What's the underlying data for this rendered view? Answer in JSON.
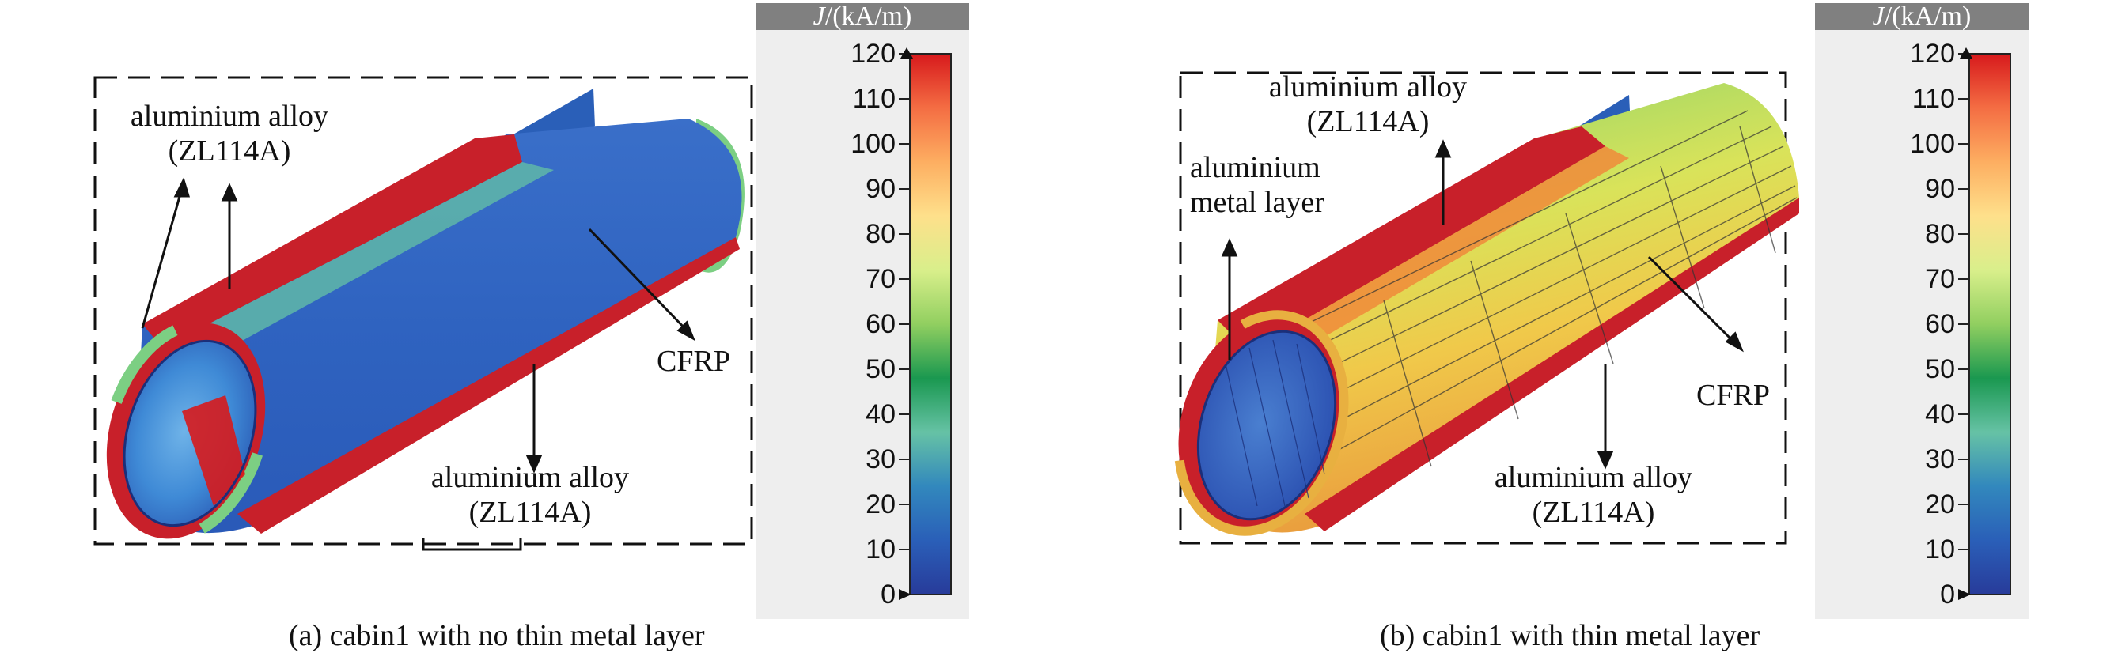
{
  "panel_a": {
    "labels": {
      "alloy_top": [
        "aluminium alloy",
        "(ZL114A)"
      ],
      "cfrp": "CFRP",
      "alloy_bottom": [
        "aluminium alloy",
        "(ZL114A)"
      ]
    },
    "caption": "(a) cabin1 with no thin metal layer"
  },
  "panel_b": {
    "labels": {
      "alloy_top": [
        "aluminium alloy",
        "(ZL114A)"
      ],
      "metal_layer": [
        "aluminium",
        "metal layer"
      ],
      "cfrp": "CFRP",
      "alloy_bottom": [
        "aluminium alloy",
        "(ZL114A)"
      ]
    },
    "caption": "(b) cabin1 with thin metal layer"
  },
  "colorbar": {
    "title_symbol": "J",
    "title_unit": "/(kA/m)",
    "ticks": [
      "120",
      "110",
      "100",
      "90",
      "80",
      "70",
      "60",
      "50",
      "40",
      "30",
      "20",
      "10",
      "0"
    ],
    "colors": [
      "#d7191c",
      "#f46d43",
      "#fdae61",
      "#fee08b",
      "#d9ef8b",
      "#91cf60",
      "#1a9850",
      "#66c2a5",
      "#3288bd",
      "#2a5fb8",
      "#283b9a"
    ]
  }
}
